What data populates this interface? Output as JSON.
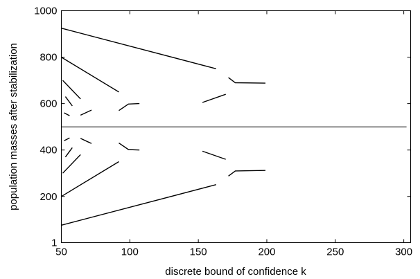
{
  "chart_data": {
    "type": "line",
    "title": "",
    "xlabel": "discrete bound of confidence k",
    "ylabel": "population masses after stabilization",
    "xlim": [
      50,
      305
    ],
    "ylim": [
      1,
      1000
    ],
    "xticks": [
      50,
      100,
      150,
      200,
      250,
      300
    ],
    "yticks": [
      1,
      200,
      400,
      600,
      800,
      1000
    ],
    "xtick_labels": [
      "50",
      "100",
      "150",
      "200",
      "250",
      "300"
    ],
    "ytick_labels": [
      "1",
      "200",
      "400",
      "600",
      "800",
      "1000"
    ],
    "grid": false,
    "series": [
      {
        "points": [
          [
            50,
            500
          ],
          [
            302,
            500
          ]
        ]
      },
      {
        "points": [
          [
            50,
            925
          ],
          [
            163,
            750
          ]
        ]
      },
      {
        "points": [
          [
            50,
            76
          ],
          [
            163,
            251
          ]
        ]
      },
      {
        "points": [
          [
            50,
            800
          ],
          [
            92,
            650
          ]
        ]
      },
      {
        "points": [
          [
            50,
            200
          ],
          [
            92,
            350
          ]
        ]
      },
      {
        "points": [
          [
            51,
            700
          ],
          [
            64,
            620
          ]
        ]
      },
      {
        "points": [
          [
            51,
            300
          ],
          [
            64,
            380
          ]
        ]
      },
      {
        "points": [
          [
            53,
            630
          ],
          [
            58,
            590
          ]
        ]
      },
      {
        "points": [
          [
            53,
            370
          ],
          [
            58,
            410
          ]
        ]
      },
      {
        "points": [
          [
            52,
            560
          ],
          [
            56,
            548
          ]
        ]
      },
      {
        "points": [
          [
            52,
            440
          ],
          [
            56,
            452
          ]
        ]
      },
      {
        "points": [
          [
            64,
            550
          ],
          [
            72,
            572
          ]
        ]
      },
      {
        "points": [
          [
            64,
            450
          ],
          [
            72,
            428
          ]
        ]
      },
      {
        "points": [
          [
            92,
            570
          ],
          [
            99,
            598
          ],
          [
            107,
            600
          ]
        ]
      },
      {
        "points": [
          [
            92,
            430
          ],
          [
            99,
            402
          ],
          [
            107,
            400
          ]
        ]
      },
      {
        "points": [
          [
            153,
            605
          ],
          [
            170,
            640
          ]
        ]
      },
      {
        "points": [
          [
            153,
            395
          ],
          [
            170,
            360
          ]
        ]
      },
      {
        "points": [
          [
            172,
            712
          ],
          [
            177,
            690
          ],
          [
            199,
            688
          ]
        ]
      },
      {
        "points": [
          [
            172,
            288
          ],
          [
            177,
            310
          ],
          [
            199,
            312
          ]
        ]
      }
    ]
  }
}
